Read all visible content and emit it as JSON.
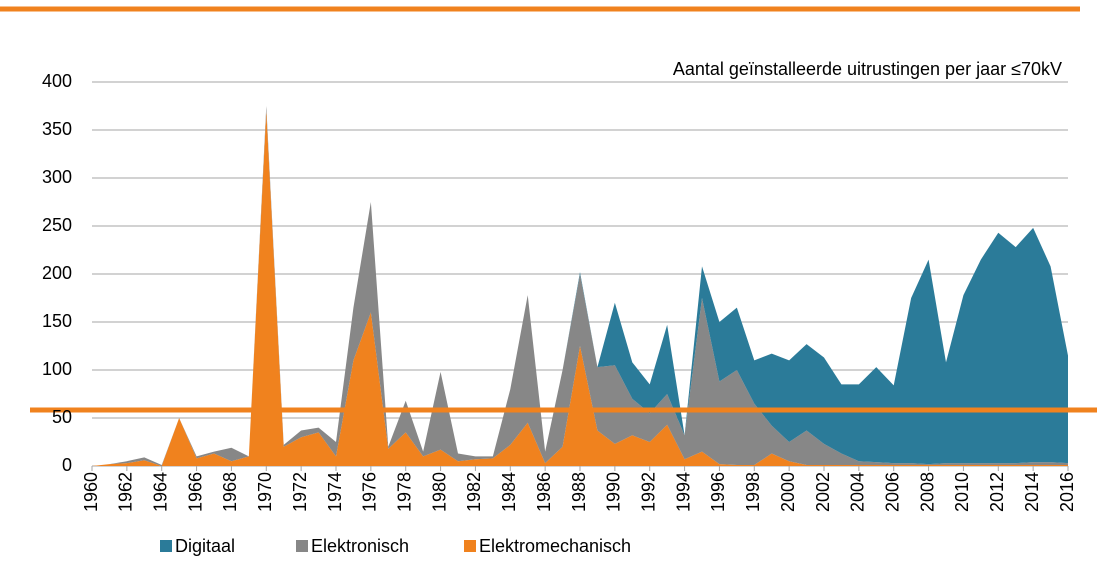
{
  "chart_data": {
    "type": "stacked_area",
    "title": "Aantal geïnstalleerde uitrustingen per jaar ≤70kV",
    "x": [
      1960,
      1961,
      1962,
      1963,
      1964,
      1965,
      1966,
      1967,
      1968,
      1969,
      1970,
      1971,
      1972,
      1973,
      1974,
      1975,
      1976,
      1977,
      1978,
      1979,
      1980,
      1981,
      1982,
      1983,
      1984,
      1985,
      1986,
      1987,
      1988,
      1989,
      1990,
      1991,
      1992,
      1993,
      1994,
      1995,
      1996,
      1997,
      1998,
      1999,
      2000,
      2001,
      2002,
      2003,
      2004,
      2005,
      2006,
      2007,
      2008,
      2009,
      2010,
      2011,
      2012,
      2013,
      2014,
      2015,
      2016
    ],
    "series": [
      {
        "name": "Digitaal",
        "color": "#2b7b99",
        "values": [
          0,
          0,
          0,
          0,
          0,
          0,
          0,
          0,
          0,
          0,
          0,
          0,
          0,
          0,
          0,
          0,
          0,
          0,
          0,
          0,
          0,
          0,
          0,
          0,
          0,
          0,
          0,
          0,
          2,
          0,
          65,
          38,
          30,
          72,
          0,
          33,
          62,
          65,
          45,
          75,
          85,
          90,
          90,
          72,
          80,
          99,
          81,
          172,
          213,
          105,
          175,
          212,
          240,
          225,
          244,
          204,
          112
        ]
      },
      {
        "name": "Elektronisch",
        "color": "#878787",
        "values": [
          0,
          0,
          2,
          3,
          1,
          0,
          2,
          2,
          14,
          0,
          5,
          2,
          7,
          5,
          15,
          55,
          115,
          2,
          33,
          5,
          81,
          8,
          3,
          2,
          58,
          133,
          12,
          80,
          75,
          66,
          82,
          38,
          30,
          32,
          25,
          160,
          86,
          99,
          64,
          29,
          20,
          36,
          22,
          12,
          4,
          3,
          2,
          2,
          1,
          2,
          2,
          2,
          2,
          2,
          3,
          3,
          2
        ]
      },
      {
        "name": "Elektromechanisch",
        "color": "#f0821e",
        "values": [
          0,
          2,
          3,
          6,
          0,
          50,
          8,
          13,
          5,
          10,
          370,
          20,
          30,
          35,
          10,
          110,
          160,
          18,
          35,
          10,
          17,
          5,
          7,
          8,
          22,
          45,
          3,
          20,
          125,
          37,
          23,
          32,
          25,
          43,
          7,
          15,
          2,
          1,
          1,
          13,
          5,
          1,
          1,
          1,
          1,
          1,
          1,
          1,
          1,
          1,
          1,
          1,
          1,
          1,
          1,
          1,
          1
        ]
      }
    ],
    "xlim": [
      1960,
      2016
    ],
    "xticks": [
      1960,
      1962,
      1964,
      1966,
      1968,
      1970,
      1972,
      1974,
      1976,
      1978,
      1980,
      1982,
      1984,
      1986,
      1988,
      1990,
      1992,
      1994,
      1996,
      1998,
      2000,
      2002,
      2004,
      2006,
      2008,
      2010,
      2012,
      2014,
      2016
    ],
    "ylim": [
      0,
      400
    ],
    "yticks": [
      0,
      50,
      100,
      150,
      200,
      250,
      300,
      350,
      400
    ],
    "grid": true,
    "stacked": true,
    "legend": "bottom"
  }
}
